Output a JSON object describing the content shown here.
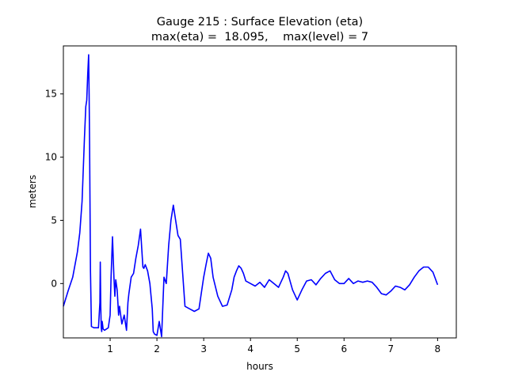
{
  "chart_data": {
    "type": "line",
    "title": "Gauge 215 : Surface Elevation (eta)",
    "subtitle": "max(eta) =  18.095,    max(level) = 7",
    "xlabel": "hours",
    "ylabel": "meters",
    "xlim": [
      0.0,
      8.4
    ],
    "ylim": [
      -4.3,
      18.8
    ],
    "grid": false,
    "x_ticks": [
      {
        "value": 1,
        "label": "1"
      },
      {
        "value": 2,
        "label": "2"
      },
      {
        "value": 3,
        "label": "3"
      },
      {
        "value": 4,
        "label": "4"
      },
      {
        "value": 5,
        "label": "5"
      },
      {
        "value": 6,
        "label": "6"
      },
      {
        "value": 7,
        "label": "7"
      },
      {
        "value": 8,
        "label": "8"
      }
    ],
    "y_ticks": [
      {
        "value": 0,
        "label": "0"
      },
      {
        "value": 5,
        "label": "5"
      },
      {
        "value": 10,
        "label": "10"
      },
      {
        "value": 15,
        "label": "15"
      }
    ],
    "series": [
      {
        "name": "eta",
        "color": "#0000ff",
        "x": [
          0.0,
          0.1,
          0.2,
          0.3,
          0.35,
          0.4,
          0.45,
          0.48,
          0.5,
          0.52,
          0.54,
          0.55,
          0.56,
          0.57,
          0.58,
          0.6,
          0.65,
          0.7,
          0.75,
          0.78,
          0.79,
          0.8,
          0.81,
          0.82,
          0.83,
          0.85,
          0.88,
          0.92,
          0.96,
          1.0,
          1.02,
          1.05,
          1.08,
          1.1,
          1.12,
          1.15,
          1.18,
          1.2,
          1.25,
          1.3,
          1.35,
          1.38,
          1.4,
          1.45,
          1.5,
          1.55,
          1.6,
          1.65,
          1.68,
          1.7,
          1.72,
          1.75,
          1.8,
          1.85,
          1.9,
          1.92,
          1.95,
          2.0,
          2.05,
          2.1,
          2.15,
          2.2,
          2.25,
          2.3,
          2.35,
          2.4,
          2.45,
          2.5,
          2.55,
          2.6,
          2.7,
          2.8,
          2.9,
          3.0,
          3.05,
          3.1,
          3.15,
          3.2,
          3.3,
          3.4,
          3.5,
          3.6,
          3.65,
          3.7,
          3.75,
          3.8,
          3.85,
          3.9,
          4.0,
          4.1,
          4.2,
          4.3,
          4.4,
          4.5,
          4.6,
          4.7,
          4.75,
          4.8,
          4.9,
          5.0,
          5.1,
          5.2,
          5.3,
          5.4,
          5.5,
          5.6,
          5.7,
          5.8,
          5.9,
          6.0,
          6.1,
          6.2,
          6.3,
          6.4,
          6.5,
          6.6,
          6.7,
          6.8,
          6.9,
          7.0,
          7.1,
          7.2,
          7.3,
          7.4,
          7.5,
          7.6,
          7.7,
          7.8,
          7.9,
          8.0
        ],
        "y": [
          -1.8,
          -0.6,
          0.5,
          2.5,
          4.0,
          6.5,
          11.5,
          14.0,
          14.5,
          16.5,
          18.1,
          15.0,
          11.0,
          5.5,
          1.0,
          -3.4,
          -3.5,
          -3.5,
          -3.5,
          -1.5,
          1.7,
          -1.8,
          -3.5,
          -3.8,
          -3.0,
          -3.6,
          -3.7,
          -3.6,
          -3.5,
          -2.5,
          0.5,
          3.7,
          0.5,
          -1.0,
          0.3,
          -0.5,
          -2.5,
          -1.8,
          -3.2,
          -2.5,
          -3.7,
          -1.5,
          -0.8,
          0.5,
          0.8,
          2.0,
          3.0,
          4.3,
          2.5,
          1.3,
          1.2,
          1.5,
          1.0,
          0.0,
          -2.0,
          -3.8,
          -4.0,
          -4.1,
          -3.0,
          -4.2,
          0.5,
          0.0,
          3.0,
          5.0,
          6.2,
          5.0,
          3.8,
          3.5,
          0.8,
          -1.8,
          -2.0,
          -2.2,
          -2.0,
          0.5,
          1.5,
          2.4,
          2.0,
          0.5,
          -1.0,
          -1.8,
          -1.7,
          -0.5,
          0.5,
          1.0,
          1.4,
          1.2,
          0.8,
          0.2,
          0.0,
          -0.2,
          0.1,
          -0.3,
          0.3,
          0.0,
          -0.3,
          0.5,
          1.0,
          0.8,
          -0.5,
          -1.3,
          -0.5,
          0.2,
          0.3,
          -0.1,
          0.4,
          0.8,
          1.0,
          0.3,
          0.0,
          0.0,
          0.4,
          0.0,
          0.2,
          0.1,
          0.2,
          0.1,
          -0.3,
          -0.8,
          -0.9,
          -0.6,
          -0.2,
          -0.3,
          -0.5,
          -0.1,
          0.5,
          1.0,
          1.3,
          1.3,
          0.9,
          -0.1
        ]
      }
    ]
  }
}
